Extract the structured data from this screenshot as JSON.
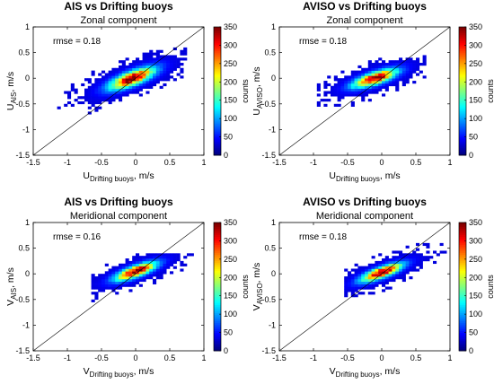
{
  "colors": {
    "colormap": "jet",
    "frame": "#000000",
    "diagonal": "#000000"
  },
  "chart_data": [
    {
      "type": "heatmap",
      "title": "AIS vs Drifting buoys",
      "subtitle": "Zonal component",
      "xlabel": {
        "main": "U",
        "sub": "Drifting buoys",
        "unit": ", m/s"
      },
      "ylabel": {
        "main": "U",
        "sub": "AIS",
        "unit": ", m/s"
      },
      "xlim": [
        -1.5,
        1
      ],
      "ylim": [
        -1.5,
        1
      ],
      "xticks": [
        -1.5,
        -1,
        -0.5,
        0,
        0.5,
        1
      ],
      "yticks": [
        -1.5,
        -1,
        -0.5,
        0,
        0.5,
        1
      ],
      "xtick_labels": [
        "-1.5",
        "-1",
        "-0.5",
        "0",
        "0.5",
        "1"
      ],
      "ytick_labels": [
        "-1.5",
        "-1",
        "-0.5",
        "0",
        "0.5",
        "1"
      ],
      "annotation": "rmse = 0.18",
      "rmse": 0.18,
      "diagonal_line": true,
      "colorbar": {
        "label": "counts",
        "range": [
          0,
          350
        ],
        "ticks": [
          "0",
          "50",
          "100",
          "150",
          "200",
          "250",
          "300",
          "350"
        ]
      },
      "density": {
        "center": [
          -0.05,
          0.0
        ],
        "spread": [
          0.38,
          0.24
        ],
        "correlation": 0.74,
        "peak_counts": 350,
        "extent_x": [
          -1.15,
          0.75
        ],
        "extent_y": [
          -1.1,
          0.6
        ]
      }
    },
    {
      "type": "heatmap",
      "title": "AVISO vs Drifting buoys",
      "subtitle": "Zonal component",
      "xlabel": {
        "main": "U",
        "sub": "Drifting buoys",
        "unit": ", m/s"
      },
      "ylabel": {
        "main": "U",
        "sub": "AVISO",
        "unit": ", m/s"
      },
      "xlim": [
        -1.5,
        1
      ],
      "ylim": [
        -1.5,
        1
      ],
      "xticks": [
        -1.5,
        -1,
        -0.5,
        0,
        0.5,
        1
      ],
      "yticks": [
        -1.5,
        -1,
        -0.5,
        0,
        0.5,
        1
      ],
      "xtick_labels": [
        "-1.5",
        "-1",
        "-0.5",
        "0",
        "0.5",
        "1"
      ],
      "ytick_labels": [
        "-1.5",
        "-1",
        "-0.5",
        "0",
        "0.5",
        "1"
      ],
      "annotation": "rmse = 0.18",
      "rmse": 0.18,
      "diagonal_line": true,
      "colorbar": {
        "label": "counts",
        "range": [
          0,
          350
        ],
        "ticks": [
          "0",
          "50",
          "100",
          "150",
          "200",
          "250",
          "300",
          "350"
        ]
      },
      "density": {
        "center": [
          -0.1,
          0.0
        ],
        "spread": [
          0.36,
          0.2
        ],
        "correlation": 0.72,
        "peak_counts": 350,
        "extent_x": [
          -0.95,
          0.65
        ],
        "extent_y": [
          -0.6,
          0.45
        ]
      }
    },
    {
      "type": "heatmap",
      "title": "AIS vs Drifting buoys",
      "subtitle": "Meridional component",
      "xlabel": {
        "main": "V",
        "sub": "Drifting buoys",
        "unit": ", m/s"
      },
      "ylabel": {
        "main": "V",
        "sub": "AIS",
        "unit": ", m/s"
      },
      "xlim": [
        -1.5,
        1
      ],
      "ylim": [
        -1.5,
        1
      ],
      "xticks": [
        -1.5,
        -1,
        -0.5,
        0,
        0.5,
        1
      ],
      "yticks": [
        -1.5,
        -1,
        -0.5,
        0,
        0.5,
        1
      ],
      "xtick_labels": [
        "-1.5",
        "-1",
        "-0.5",
        "0",
        "0.5",
        "1"
      ],
      "ytick_labels": [
        "-1.5",
        "-1",
        "-0.5",
        "0",
        "0.5",
        "1"
      ],
      "annotation": "rmse = 0.16",
      "rmse": 0.16,
      "diagonal_line": true,
      "colorbar": {
        "label": "counts",
        "range": [
          0,
          350
        ],
        "ticks": [
          "0",
          "50",
          "100",
          "150",
          "200",
          "250",
          "300",
          "350"
        ]
      },
      "density": {
        "center": [
          0.0,
          0.05
        ],
        "spread": [
          0.34,
          0.2
        ],
        "correlation": 0.76,
        "peak_counts": 350,
        "extent_x": [
          -0.65,
          0.85
        ],
        "extent_y": [
          -0.55,
          0.4
        ]
      }
    },
    {
      "type": "heatmap",
      "title": "AVISO vs Drifting buoys",
      "subtitle": "Meridional component",
      "xlabel": {
        "main": "V",
        "sub": "Drifting buoys",
        "unit": ", m/s"
      },
      "ylabel": {
        "main": "V",
        "sub": "AVISO",
        "unit": ", m/s"
      },
      "xlim": [
        -1.5,
        1
      ],
      "ylim": [
        -1.5,
        1
      ],
      "xticks": [
        -1.5,
        -1,
        -0.5,
        0,
        0.5,
        1
      ],
      "yticks": [
        -1.5,
        -1,
        -0.5,
        0,
        0.5,
        1
      ],
      "xtick_labels": [
        "-1.5",
        "-1",
        "-0.5",
        "0",
        "0.5",
        "1"
      ],
      "ytick_labels": [
        "-1.5",
        "-1",
        "-0.5",
        "0",
        "0.5",
        "1"
      ],
      "annotation": "rmse = 0.18",
      "rmse": 0.18,
      "diagonal_line": true,
      "colorbar": {
        "label": "counts",
        "range": [
          0,
          350
        ],
        "ticks": [
          "0",
          "50",
          "100",
          "150",
          "200",
          "250",
          "300",
          "350"
        ]
      },
      "density": {
        "center": [
          0.0,
          0.03
        ],
        "spread": [
          0.34,
          0.2
        ],
        "correlation": 0.78,
        "peak_counts": 350,
        "extent_x": [
          -0.55,
          0.95
        ],
        "extent_y": [
          -0.5,
          0.6
        ]
      }
    }
  ]
}
